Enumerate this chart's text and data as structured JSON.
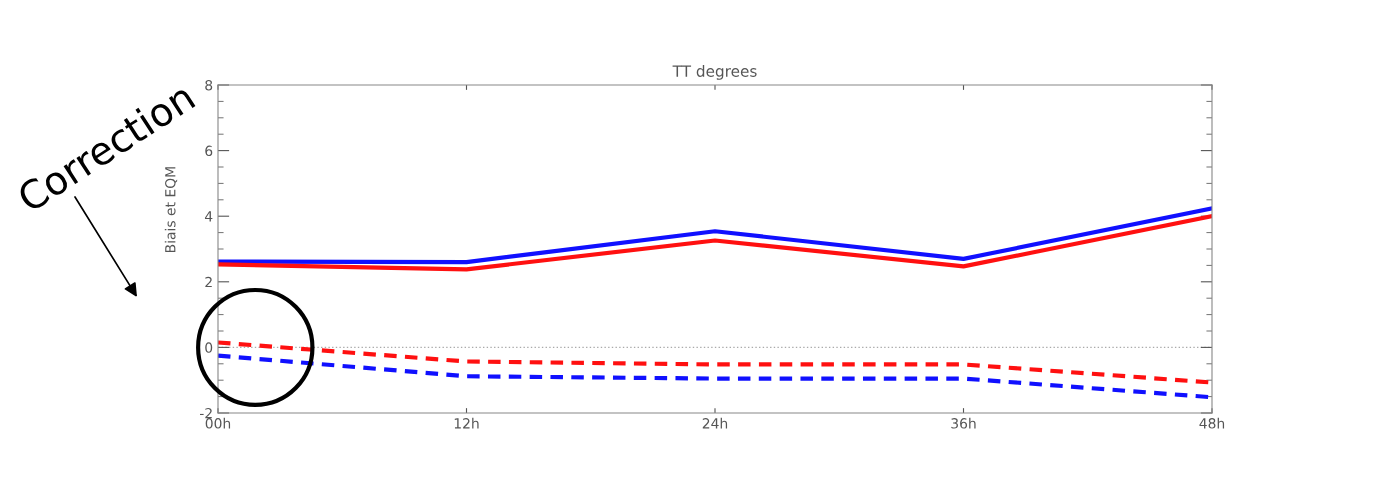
{
  "chart_data": {
    "type": "line",
    "title": "TT degrees",
    "ylabel": "Biais et EQM",
    "categories": [
      "00h",
      "12h",
      "24h",
      "36h",
      "48h"
    ],
    "series": [
      {
        "color": "#1010ff",
        "line_style": "solid",
        "values": [
          2.62,
          2.6,
          3.54,
          2.7,
          4.24
        ]
      },
      {
        "color": "#ff1010",
        "line_style": "solid",
        "values": [
          2.53,
          2.38,
          3.26,
          2.47,
          4.0
        ]
      },
      {
        "color": "#ff1010",
        "line_style": "dashed",
        "values": [
          0.15,
          -0.43,
          -0.52,
          -0.52,
          -1.07
        ]
      },
      {
        "color": "#1010ff",
        "line_style": "dashed",
        "values": [
          -0.25,
          -0.88,
          -0.95,
          -0.95,
          -1.52
        ]
      }
    ],
    "ylim": [
      -2,
      8
    ],
    "yticks": [
      -2,
      0,
      2,
      4,
      6,
      8
    ],
    "grid": false,
    "legend": false,
    "marker": "none",
    "ref_lines": [
      {
        "axis": "y",
        "value": 0,
        "color": "#aaaaaa",
        "line_style": "dotted"
      }
    ],
    "annotations": [
      "Correction"
    ]
  }
}
